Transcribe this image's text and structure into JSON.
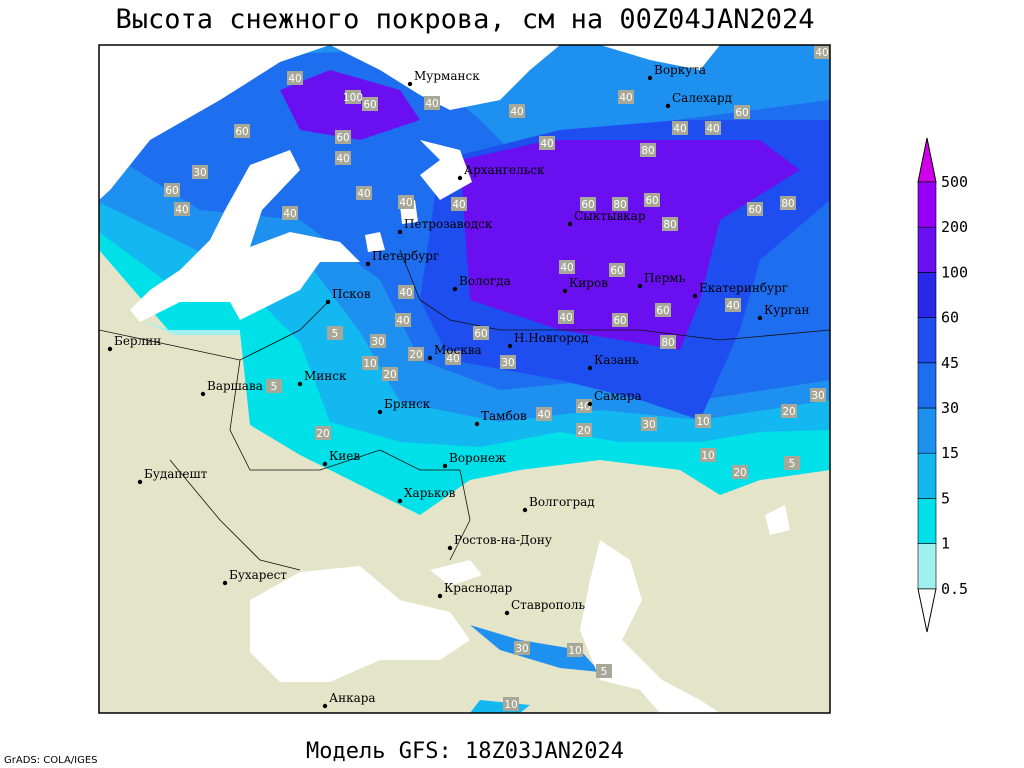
{
  "title": "Высота снежного покрова, см на 00Z04JAN2024",
  "footer": "Модель GFS: 18Z03JAN2024",
  "credit": "GrADS: COLA/IGES",
  "colorbar": {
    "levels": [
      0.5,
      1,
      5,
      15,
      30,
      45,
      60,
      100,
      200,
      500
    ],
    "colors": [
      "#ffffff",
      "#a0f0f0",
      "#00e0e8",
      "#14b8f0",
      "#1e90f0",
      "#1e6ef0",
      "#1e4ef0",
      "#2828e8",
      "#6a10f0",
      "#9600f8",
      "#d000e8"
    ]
  },
  "cities": [
    "Мурманск",
    "Воркута",
    "Салехард",
    "Архангельск",
    "Сыктывкар",
    "Петрозаводск",
    "Петербург",
    "Вологда",
    "Киров",
    "Пермь",
    "Екатеринбург",
    "Курган",
    "Псков",
    "Берлин",
    "Н.Новгород",
    "Москва",
    "Казань",
    "Минск",
    "Варшава",
    "Брянск",
    "Тамбов",
    "Самара",
    "Киев",
    "Воронеж",
    "Будапешт",
    "Харьков",
    "Волгоград",
    "Ростов-на-Дону",
    "Бухарест",
    "Краснодар",
    "Ставрополь",
    "Анкара"
  ],
  "contour_labels": [
    40,
    100,
    60,
    40,
    60,
    60,
    40,
    30,
    60,
    40,
    40,
    40,
    40,
    40,
    40,
    40,
    40,
    60,
    40,
    40,
    40,
    80,
    60,
    80,
    60,
    80,
    60,
    80,
    40,
    60,
    40,
    40,
    60,
    40,
    60,
    60,
    80,
    40,
    30,
    20,
    40,
    30,
    20,
    10,
    5,
    5,
    40,
    40,
    20,
    30,
    10,
    20,
    30,
    20,
    10,
    20,
    5,
    30,
    10,
    5,
    10
  ]
}
